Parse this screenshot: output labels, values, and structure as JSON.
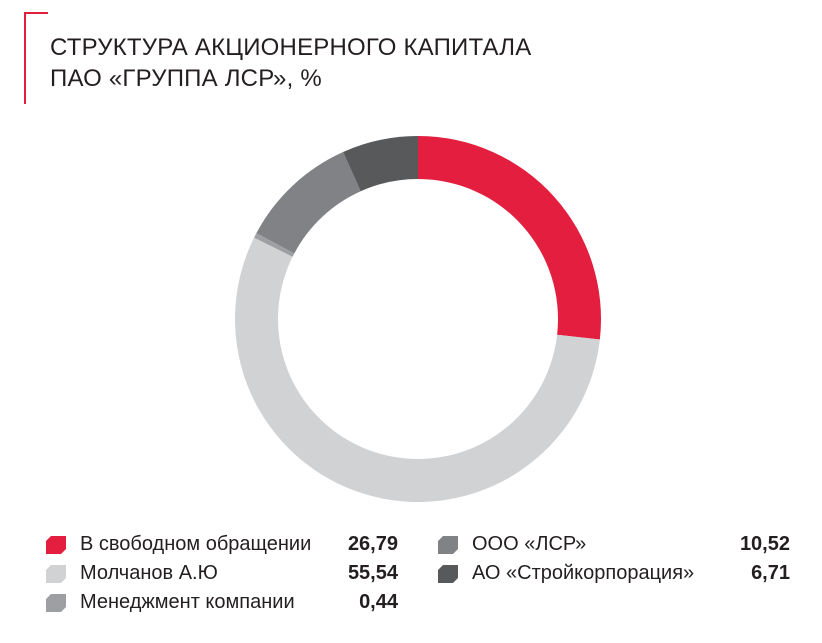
{
  "chart_data": {
    "type": "pie",
    "title_lines": [
      "СТРУКТУРА АКЦИОНЕРНОГО КАПИТАЛА",
      "ПАО «ГРУППА ЛСР», %"
    ],
    "slices": [
      {
        "label": "В свободном обращении",
        "value": 26.79,
        "value_text": "26,79",
        "color": "#e31e3f"
      },
      {
        "label": "Молчанов А.Ю",
        "value": 55.54,
        "value_text": "55,54",
        "color": "#d1d2d4"
      },
      {
        "label": "Менеджмент компании",
        "value": 0.44,
        "value_text": "0,44",
        "color": "#9d9fa2"
      },
      {
        "label": "ООО «ЛСР»",
        "value": 10.52,
        "value_text": "10,52",
        "color": "#808285"
      },
      {
        "label": "АО «Стройкорпорация»",
        "value": 6.71,
        "value_text": "6,71",
        "color": "#58595b"
      }
    ],
    "legend_placement": "bottom",
    "legend_columns": [
      [
        0,
        1,
        2
      ],
      [
        3,
        4
      ]
    ]
  },
  "accent_color": "#e31e3f"
}
